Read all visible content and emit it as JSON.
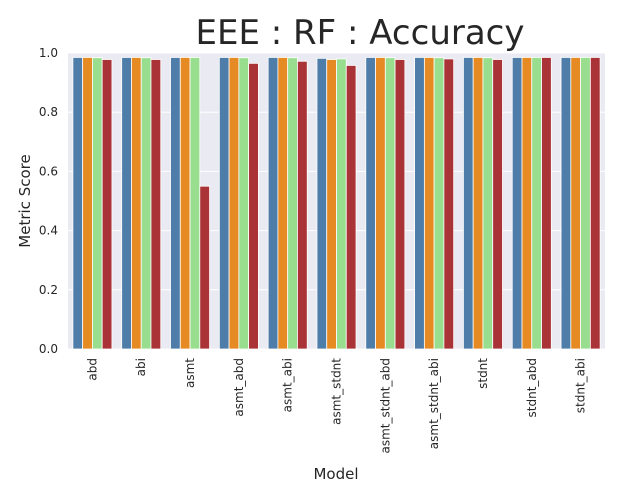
{
  "chart_data": {
    "type": "bar",
    "title": "EEE : RF : Accuracy",
    "xlabel": "Model",
    "ylabel": "Metric Score",
    "ylim": [
      0,
      1.0
    ],
    "yticks": [
      "0.0",
      "0.2",
      "0.4",
      "0.6",
      "0.8",
      "1.0"
    ],
    "grid": true,
    "legend": "none",
    "categories": [
      "abd",
      "abi",
      "asmt",
      "asmt_abd",
      "asmt_abi",
      "asmt_stdnt",
      "asmt_stdnt_abd",
      "asmt_stdnt_abi",
      "stdnt",
      "stdnt_abd",
      "stdnt_abi"
    ],
    "series": [
      {
        "color": "#4f7da9",
        "values": [
          0.985,
          0.985,
          0.985,
          0.985,
          0.985,
          0.982,
          0.985,
          0.985,
          0.985,
          0.985,
          0.985
        ]
      },
      {
        "color": "#e68a23",
        "values": [
          0.985,
          0.985,
          0.985,
          0.985,
          0.985,
          0.978,
          0.985,
          0.985,
          0.985,
          0.985,
          0.985
        ]
      },
      {
        "color": "#99de8e",
        "values": [
          0.984,
          0.984,
          0.985,
          0.984,
          0.984,
          0.98,
          0.984,
          0.984,
          0.984,
          0.985,
          0.985
        ]
      },
      {
        "color": "#a93336",
        "values": [
          0.978,
          0.978,
          0.55,
          0.965,
          0.972,
          0.958,
          0.978,
          0.98,
          0.978,
          0.985,
          0.985
        ]
      }
    ]
  }
}
